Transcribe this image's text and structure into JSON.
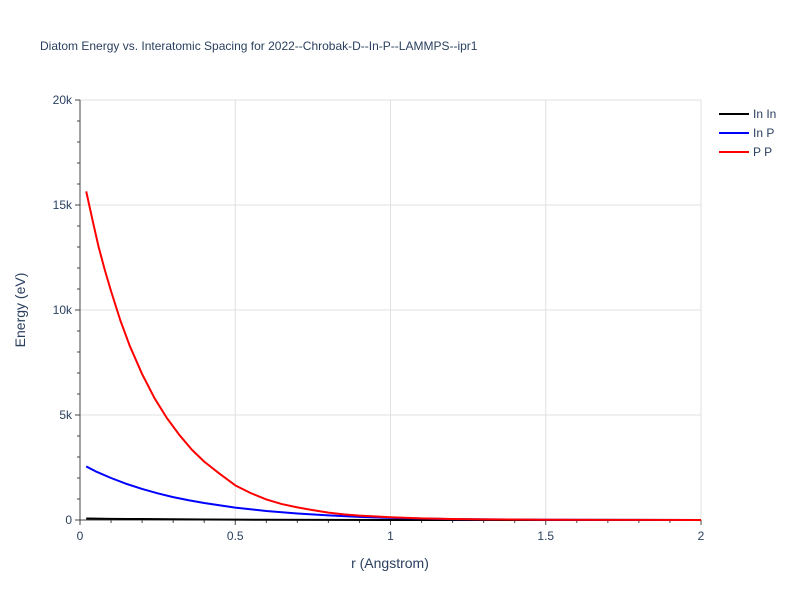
{
  "chart_data": {
    "type": "line",
    "title": "Diatom Energy vs. Interatomic Spacing for 2022--Chrobak-D--In-P--LAMMPS--ipr1",
    "xlabel": "r (Angstrom)",
    "ylabel": "Energy (eV)",
    "xlim": [
      0,
      2
    ],
    "ylim": [
      0,
      20000
    ],
    "xticks": [
      0,
      0.5,
      1,
      1.5,
      2
    ],
    "xtick_labels": [
      "0",
      "0.5",
      "1",
      "1.5",
      "2"
    ],
    "yticks": [
      0,
      5000,
      10000,
      15000,
      20000
    ],
    "ytick_labels": [
      "0",
      "5k",
      "10k",
      "15k",
      "20k"
    ],
    "grid": true,
    "legend_position": "top-right",
    "series": [
      {
        "name": "In In",
        "color": "#000000",
        "x": [
          0.02,
          0.1,
          0.2,
          0.3,
          0.4,
          0.5,
          0.6,
          0.8,
          1.0,
          1.5,
          2.0
        ],
        "y": [
          70,
          55,
          45,
          35,
          25,
          18,
          12,
          6,
          2,
          0,
          0
        ]
      },
      {
        "name": "In P",
        "color": "#0000ff",
        "x": [
          0.02,
          0.05,
          0.1,
          0.15,
          0.2,
          0.25,
          0.3,
          0.35,
          0.4,
          0.5,
          0.6,
          0.7,
          0.8,
          0.9,
          1.0,
          1.2,
          1.5,
          2.0
        ],
        "y": [
          2550,
          2320,
          2000,
          1720,
          1480,
          1270,
          1090,
          940,
          810,
          590,
          430,
          310,
          220,
          150,
          100,
          40,
          10,
          0
        ]
      },
      {
        "name": "P P",
        "color": "#ff0000",
        "x": [
          0.02,
          0.04,
          0.06,
          0.08,
          0.1,
          0.13,
          0.16,
          0.2,
          0.24,
          0.28,
          0.32,
          0.36,
          0.4,
          0.45,
          0.5,
          0.55,
          0.6,
          0.65,
          0.7,
          0.75,
          0.8,
          0.85,
          0.9,
          1.0,
          1.1,
          1.2,
          1.3,
          1.5,
          1.7,
          2.0
        ],
        "y": [
          15650,
          14300,
          13000,
          11900,
          10900,
          9500,
          8300,
          6950,
          5800,
          4850,
          4050,
          3350,
          2780,
          2200,
          1650,
          1280,
          980,
          760,
          600,
          470,
          350,
          270,
          210,
          130,
          80,
          50,
          30,
          10,
          5,
          0
        ]
      }
    ]
  }
}
